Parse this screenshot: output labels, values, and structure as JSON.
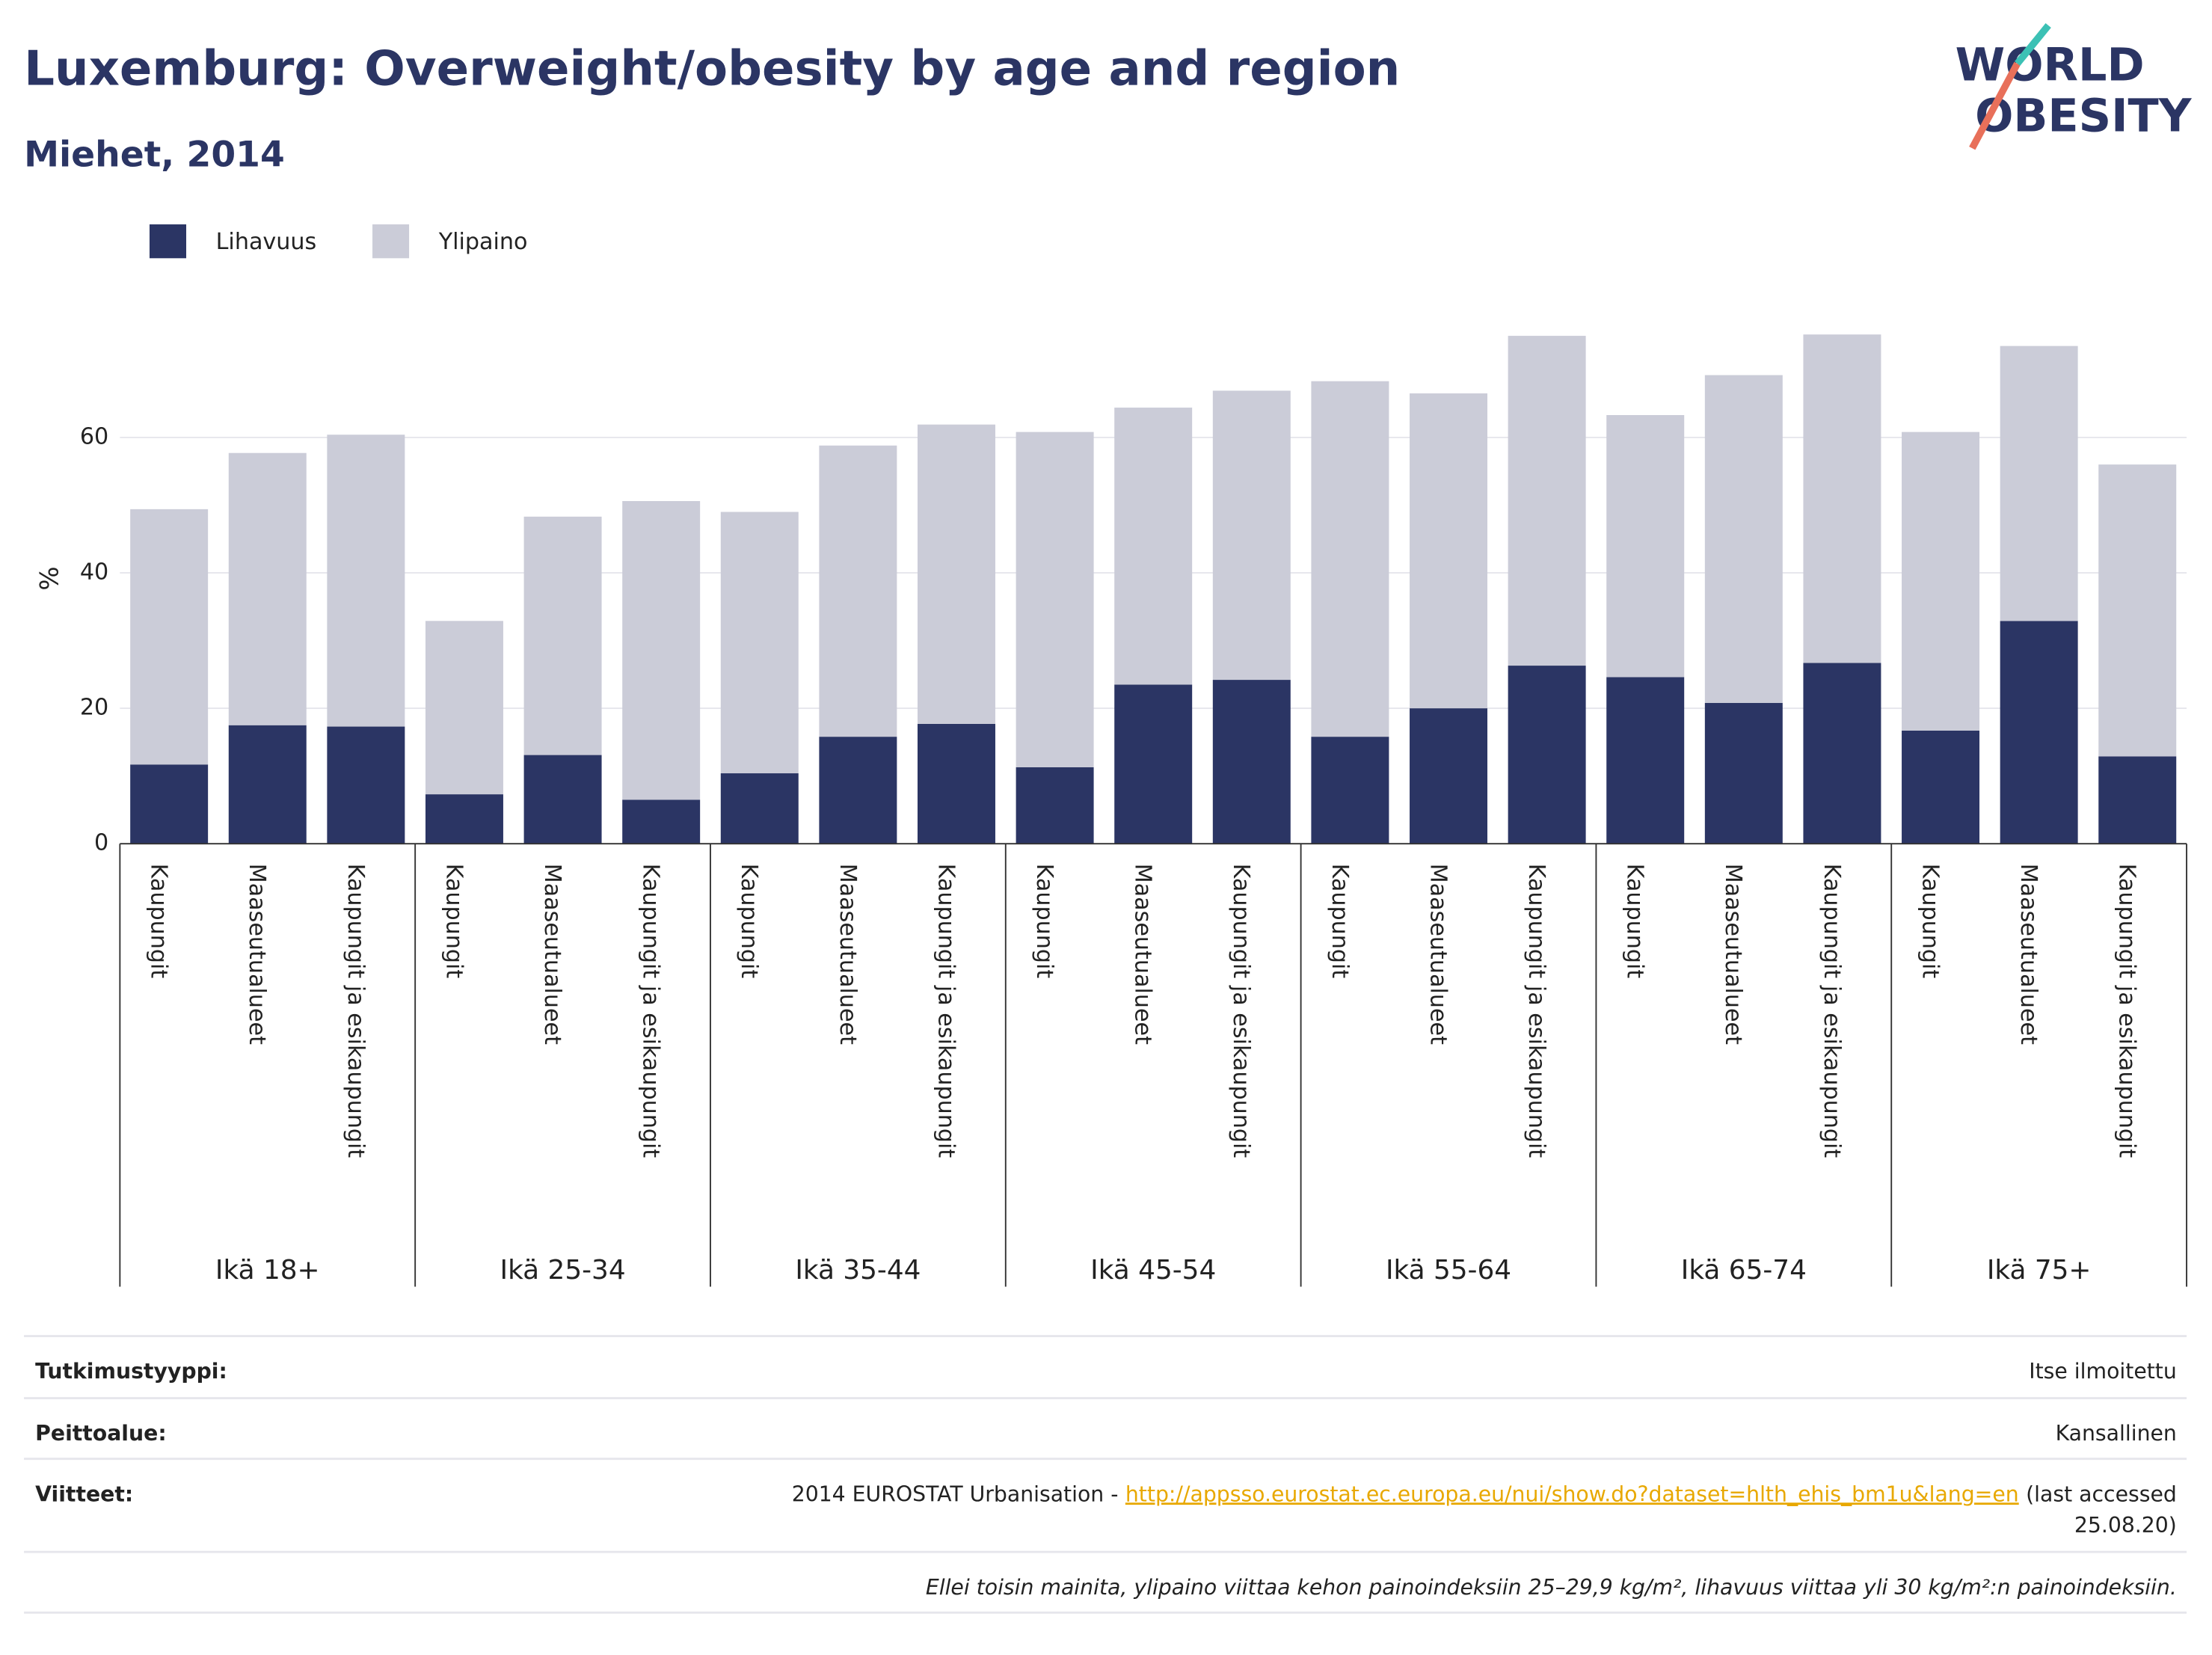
{
  "chart_data": {
    "type": "stacked-bar",
    "title": "Luxemburg: Overweight/obesity by age and region",
    "subtitle": "Miehet, 2014",
    "ylabel": "%",
    "categories": [
      "Kaupungit",
      "Maaseutualueet",
      "Kaupungit ja esikaupungit",
      "Kaupungit",
      "Maaseutualueet",
      "Kaupungit ja esikaupungit",
      "Kaupungit",
      "Maaseutualueet",
      "Kaupungit ja esikaupungit",
      "Kaupungit",
      "Maaseutualueet",
      "Kaupungit ja esikaupungit",
      "Kaupungit",
      "Maaseutualueet",
      "Kaupungit ja esikaupungit",
      "Kaupungit",
      "Maaseutualueet",
      "Kaupungit ja esikaupungit",
      "Kaupungit",
      "Maaseutualueet",
      "Kaupungit ja esikaupungit"
    ],
    "groups": [
      "Ikä 18+",
      "Ikä 25-34",
      "Ikä 35-44",
      "Ikä 45-54",
      "Ikä 55-64",
      "Ikä 65-74",
      "Ikä 75+"
    ],
    "series": [
      {
        "name": "Lihavuus",
        "color": "#2b3564",
        "values": [
          11.7,
          17.5,
          17.3,
          7.3,
          13.1,
          6.5,
          10.4,
          15.8,
          17.7,
          11.3,
          23.5,
          24.2,
          15.8,
          20.0,
          26.3,
          24.6,
          20.8,
          26.7,
          16.7,
          32.9,
          12.9
        ]
      },
      {
        "name": "Ylipaino",
        "color": "#cbccd8",
        "values": [
          37.7,
          40.2,
          43.1,
          25.6,
          35.2,
          44.1,
          38.6,
          43.0,
          44.2,
          49.5,
          40.9,
          42.7,
          52.5,
          46.5,
          48.7,
          38.7,
          48.4,
          48.5,
          44.1,
          40.6,
          43.1
        ]
      }
    ],
    "ylim": [
      0,
      78
    ],
    "yticks": [
      0,
      20,
      40,
      60
    ],
    "grid": true,
    "legend": "top-left"
  },
  "logo": {
    "line1": "WORLD",
    "line2": "OBESITY"
  },
  "footer": {
    "rows": [
      {
        "label": "Tutkimustyyppi:",
        "value": "Itse ilmoitettu"
      },
      {
        "label": "Peittoalue:",
        "value": "Kansallinen"
      }
    ],
    "reference": {
      "label": "Viitteet:",
      "prefix": "2014 EUROSTAT Urbanisation -",
      "link": "http://appsso.eurostat.ec.europa.eu/nui/show.do?dataset=hlth_ehis_bm1u&lang=en",
      "suffix": "(last accessed",
      "suffix2": "25.08.20)"
    },
    "note": "Ellei toisin mainita, ylipaino viittaa kehon painoindeksiin 25–29,9 kg/m², lihavuus viittaa yli 30 kg/m²:n painoindeksiin."
  }
}
